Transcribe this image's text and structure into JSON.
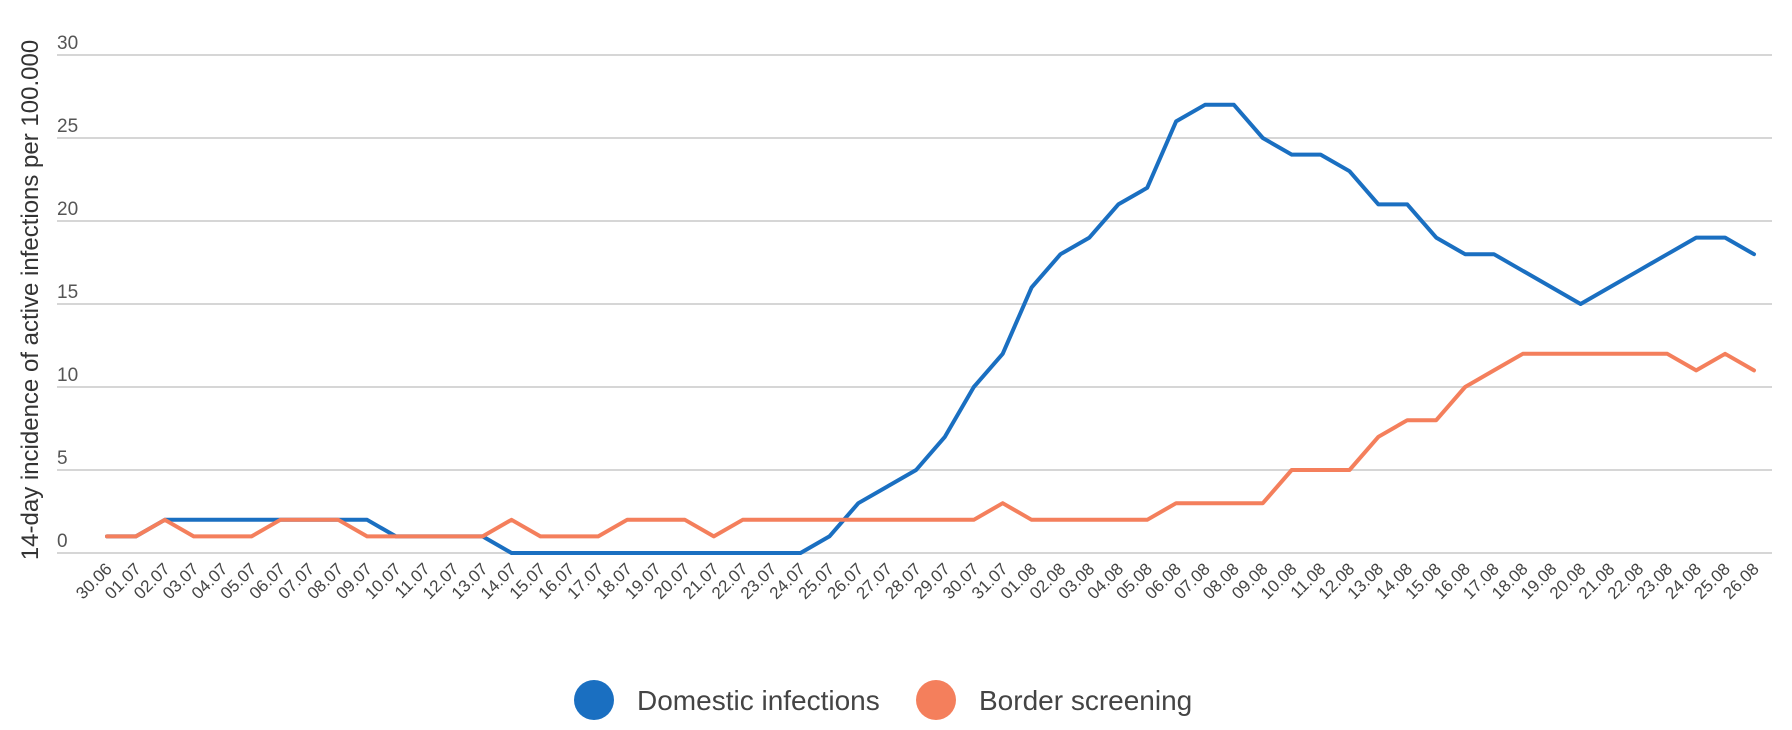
{
  "chart_data": {
    "type": "line",
    "ylabel": "14-day incidence of active infections per 100.000",
    "xlabel": "",
    "ylim": [
      0,
      30
    ],
    "yticks": [
      "0",
      "5",
      "10",
      "15",
      "20",
      "25",
      "30"
    ],
    "grid": true,
    "legend_position": "bottom-center",
    "categories": [
      "30.06",
      "01.07",
      "02.07",
      "03.07",
      "04.07",
      "05.07",
      "06.07",
      "07.07",
      "08.07",
      "09.07",
      "10.07",
      "11.07",
      "12.07",
      "13.07",
      "14.07",
      "15.07",
      "16.07",
      "17.07",
      "18.07",
      "19.07",
      "20.07",
      "21.07",
      "22.07",
      "23.07",
      "24.07",
      "25.07",
      "26.07",
      "27.07",
      "28.07",
      "29.07",
      "30.07",
      "31.07",
      "01.08",
      "02.08",
      "03.08",
      "04.08",
      "05.08",
      "06.08",
      "07.08",
      "08.08",
      "09.08",
      "10.08",
      "11.08",
      "12.08",
      "13.08",
      "14.08",
      "15.08",
      "16.08",
      "17.08",
      "18.08",
      "19.08",
      "20.08",
      "21.08",
      "22.08",
      "23.08",
      "24.08",
      "25.08",
      "26.08"
    ],
    "series": [
      {
        "name": "Domestic infections",
        "color": "#1a6fc1",
        "values": [
          1,
          1,
          2,
          2,
          2,
          2,
          2,
          2,
          2,
          2,
          1,
          1,
          1,
          1,
          0,
          0,
          0,
          0,
          0,
          0,
          0,
          0,
          0,
          0,
          0,
          1,
          3,
          4,
          5,
          7,
          10,
          12,
          16,
          18,
          19,
          21,
          22,
          26,
          27,
          27,
          25,
          24,
          24,
          23,
          21,
          21,
          19,
          18,
          18,
          17,
          16,
          15,
          16,
          17,
          18,
          19,
          19,
          18
        ]
      },
      {
        "name": "Border screening",
        "color": "#f47f5c",
        "values": [
          1,
          1,
          2,
          1,
          1,
          1,
          2,
          2,
          2,
          1,
          1,
          1,
          1,
          1,
          2,
          1,
          1,
          1,
          2,
          2,
          2,
          1,
          2,
          2,
          2,
          2,
          2,
          2,
          2,
          2,
          2,
          3,
          2,
          2,
          2,
          2,
          2,
          3,
          3,
          3,
          3,
          5,
          5,
          5,
          7,
          8,
          8,
          10,
          11,
          12,
          12,
          12,
          12,
          12,
          12,
          11,
          12,
          11
        ]
      }
    ]
  }
}
